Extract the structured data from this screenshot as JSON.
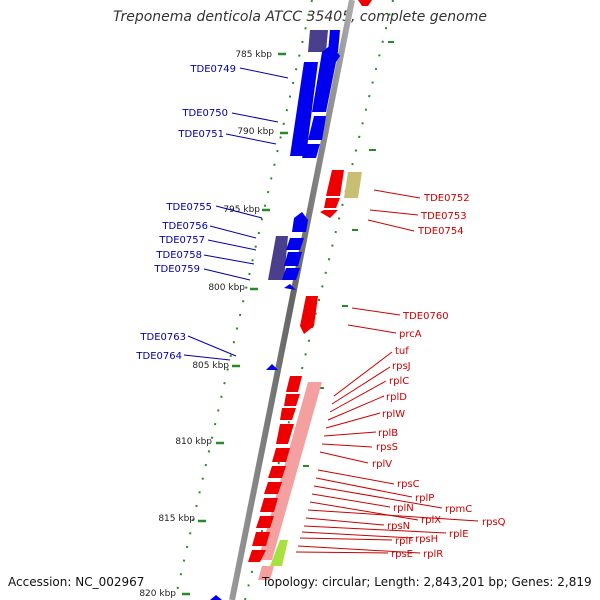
{
  "header": {
    "title": "Treponema denticola ATCC 35405, complete genome"
  },
  "footer": {
    "accession": "Accession: NC_002967",
    "topology": "Topology: circular; Length: 2,843,201 bp; Genes: 2,819"
  },
  "map": {
    "ticks": [
      "785 kbp",
      "790 kbp",
      "795 kbp",
      "800 kbp",
      "805 kbp",
      "810 kbp",
      "815 kbp",
      "820 kbp"
    ],
    "left_genes": [
      "TDE0749",
      "TDE0750",
      "TDE0751",
      "TDE0755",
      "TDE0756",
      "TDE0757",
      "TDE0758",
      "TDE0759",
      "TDE0763",
      "TDE0764"
    ],
    "right_genes": [
      "TDE0752",
      "TDE0753",
      "TDE0754",
      "TDE0760",
      "prcA",
      "tuf",
      "rpsJ",
      "rplC",
      "rplD",
      "rplW",
      "rplB",
      "rpsS",
      "rplV",
      "rpsC",
      "rplP",
      "rpmC",
      "rplN",
      "rplX",
      "rpsQ",
      "rpsN",
      "rplE",
      "rpsH",
      "rplF",
      "rplR",
      "rpsE"
    ]
  },
  "colors": {
    "forward_strand": "#0000ee",
    "forward_strand_dark": "#4a3f8c",
    "reverse_strand": "#ee0000",
    "reverse_light": "#f4a0a0",
    "olive": "#c8bf74",
    "lime": "#a8e040",
    "backbone": "#888888",
    "tick": "#2a8a2a",
    "left_label": "#0000aa",
    "right_label": "#cc0000"
  }
}
